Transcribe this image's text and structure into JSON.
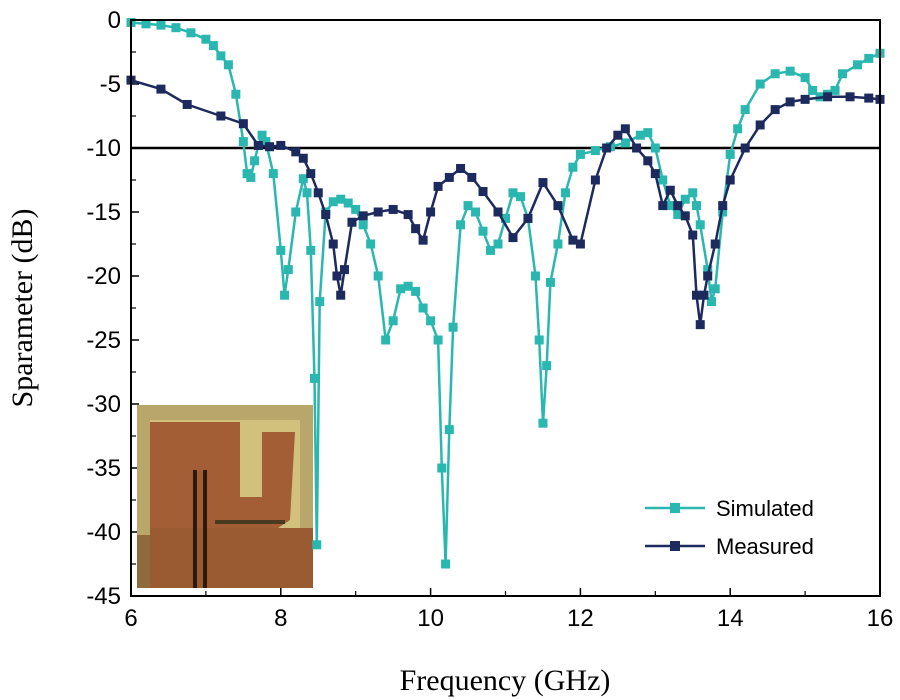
{
  "chart_data": {
    "type": "line",
    "title": "",
    "xlabel": "Frequency (GHz)",
    "ylabel": "Sparameter (dB)",
    "xlim": [
      6,
      16
    ],
    "ylim": [
      -45,
      0
    ],
    "xticks": [
      6,
      8,
      10,
      12,
      14,
      16
    ],
    "yticks": [
      0,
      -5,
      -10,
      -15,
      -20,
      -25,
      -30,
      -35,
      -40,
      -45
    ],
    "reference_line": {
      "y": -10,
      "color": "#000000"
    },
    "legend": {
      "position": "bottom-right"
    },
    "inset": {
      "description": "photo",
      "position": "bottom-left"
    },
    "series": [
      {
        "name": "Simulated",
        "color": "#2ab7b0",
        "marker": "square",
        "points": [
          [
            6.0,
            -0.2
          ],
          [
            6.2,
            -0.3
          ],
          [
            6.4,
            -0.4
          ],
          [
            6.6,
            -0.6
          ],
          [
            6.8,
            -1.0
          ],
          [
            7.0,
            -1.5
          ],
          [
            7.1,
            -2.0
          ],
          [
            7.2,
            -2.8
          ],
          [
            7.3,
            -3.5
          ],
          [
            7.4,
            -5.8
          ],
          [
            7.5,
            -9.5
          ],
          [
            7.55,
            -12.0
          ],
          [
            7.6,
            -12.3
          ],
          [
            7.65,
            -11.0
          ],
          [
            7.7,
            -9.8
          ],
          [
            7.75,
            -9.0
          ],
          [
            7.8,
            -9.5
          ],
          [
            7.9,
            -12.0
          ],
          [
            8.0,
            -18.0
          ],
          [
            8.05,
            -21.5
          ],
          [
            8.1,
            -19.5
          ],
          [
            8.2,
            -15.0
          ],
          [
            8.3,
            -12.4
          ],
          [
            8.35,
            -13.5
          ],
          [
            8.4,
            -18.0
          ],
          [
            8.45,
            -28.0
          ],
          [
            8.48,
            -41.0
          ],
          [
            8.52,
            -22.0
          ],
          [
            8.6,
            -15.0
          ],
          [
            8.7,
            -14.2
          ],
          [
            8.8,
            -14.0
          ],
          [
            8.9,
            -14.3
          ],
          [
            9.0,
            -14.8
          ],
          [
            9.1,
            -16.0
          ],
          [
            9.2,
            -17.5
          ],
          [
            9.3,
            -20.0
          ],
          [
            9.4,
            -25.0
          ],
          [
            9.5,
            -23.5
          ],
          [
            9.6,
            -21.0
          ],
          [
            9.7,
            -20.8
          ],
          [
            9.8,
            -21.2
          ],
          [
            9.9,
            -22.5
          ],
          [
            10.0,
            -23.5
          ],
          [
            10.1,
            -25.0
          ],
          [
            10.15,
            -35.0
          ],
          [
            10.2,
            -42.5
          ],
          [
            10.25,
            -32.0
          ],
          [
            10.3,
            -24.0
          ],
          [
            10.4,
            -16.0
          ],
          [
            10.5,
            -14.5
          ],
          [
            10.6,
            -15.0
          ],
          [
            10.7,
            -16.5
          ],
          [
            10.8,
            -18.0
          ],
          [
            10.9,
            -17.5
          ],
          [
            11.0,
            -15.5
          ],
          [
            11.1,
            -13.5
          ],
          [
            11.2,
            -13.8
          ],
          [
            11.3,
            -15.5
          ],
          [
            11.4,
            -20.0
          ],
          [
            11.45,
            -25.0
          ],
          [
            11.5,
            -31.5
          ],
          [
            11.55,
            -27.0
          ],
          [
            11.6,
            -20.5
          ],
          [
            11.7,
            -17.5
          ],
          [
            11.8,
            -13.5
          ],
          [
            11.9,
            -11.5
          ],
          [
            12.0,
            -10.5
          ],
          [
            12.2,
            -10.2
          ],
          [
            12.4,
            -9.9
          ],
          [
            12.6,
            -9.6
          ],
          [
            12.8,
            -9.0
          ],
          [
            12.9,
            -8.8
          ],
          [
            13.0,
            -10.0
          ],
          [
            13.1,
            -12.5
          ],
          [
            13.2,
            -14.5
          ],
          [
            13.3,
            -15.2
          ],
          [
            13.4,
            -14.0
          ],
          [
            13.5,
            -13.5
          ],
          [
            13.55,
            -14.5
          ],
          [
            13.6,
            -16.0
          ],
          [
            13.7,
            -19.5
          ],
          [
            13.75,
            -22.0
          ],
          [
            13.8,
            -21.0
          ],
          [
            13.9,
            -15.0
          ],
          [
            14.0,
            -10.5
          ],
          [
            14.1,
            -8.5
          ],
          [
            14.2,
            -7.0
          ],
          [
            14.4,
            -5.0
          ],
          [
            14.6,
            -4.2
          ],
          [
            14.8,
            -4.0
          ],
          [
            15.0,
            -4.5
          ],
          [
            15.1,
            -5.5
          ],
          [
            15.2,
            -6.0
          ],
          [
            15.3,
            -5.8
          ],
          [
            15.4,
            -5.5
          ],
          [
            15.5,
            -4.2
          ],
          [
            15.7,
            -3.5
          ],
          [
            15.85,
            -3.0
          ],
          [
            16.0,
            -2.6
          ]
        ]
      },
      {
        "name": "Measured",
        "color": "#1c2a5e",
        "marker": "square",
        "points": [
          [
            6.0,
            -4.7
          ],
          [
            6.4,
            -5.4
          ],
          [
            6.75,
            -6.6
          ],
          [
            7.2,
            -7.5
          ],
          [
            7.5,
            -8.1
          ],
          [
            7.7,
            -9.8
          ],
          [
            7.85,
            -9.9
          ],
          [
            8.0,
            -9.8
          ],
          [
            8.2,
            -10.3
          ],
          [
            8.3,
            -10.8
          ],
          [
            8.4,
            -12.0
          ],
          [
            8.5,
            -13.5
          ],
          [
            8.6,
            -15.2
          ],
          [
            8.7,
            -17.5
          ],
          [
            8.75,
            -20.0
          ],
          [
            8.8,
            -21.5
          ],
          [
            8.85,
            -19.5
          ],
          [
            8.95,
            -15.8
          ],
          [
            9.1,
            -15.3
          ],
          [
            9.3,
            -15.0
          ],
          [
            9.5,
            -14.8
          ],
          [
            9.7,
            -15.2
          ],
          [
            9.8,
            -16.3
          ],
          [
            9.9,
            -17.2
          ],
          [
            10.0,
            -15.0
          ],
          [
            10.1,
            -13.0
          ],
          [
            10.25,
            -12.3
          ],
          [
            10.4,
            -11.6
          ],
          [
            10.55,
            -12.3
          ],
          [
            10.7,
            -13.4
          ],
          [
            10.9,
            -15.0
          ],
          [
            11.1,
            -17.0
          ],
          [
            11.3,
            -15.5
          ],
          [
            11.5,
            -12.7
          ],
          [
            11.7,
            -14.5
          ],
          [
            11.9,
            -17.2
          ],
          [
            12.0,
            -17.5
          ],
          [
            12.2,
            -12.5
          ],
          [
            12.35,
            -10.0
          ],
          [
            12.5,
            -9.0
          ],
          [
            12.6,
            -8.5
          ],
          [
            12.75,
            -10.0
          ],
          [
            12.9,
            -11.0
          ],
          [
            13.0,
            -12.0
          ],
          [
            13.1,
            -14.5
          ],
          [
            13.2,
            -13.3
          ],
          [
            13.3,
            -14.5
          ],
          [
            13.4,
            -15.3
          ],
          [
            13.5,
            -16.8
          ],
          [
            13.55,
            -21.5
          ],
          [
            13.6,
            -23.8
          ],
          [
            13.65,
            -21.5
          ],
          [
            13.7,
            -20.0
          ],
          [
            13.8,
            -17.5
          ],
          [
            13.9,
            -14.5
          ],
          [
            14.0,
            -12.5
          ],
          [
            14.2,
            -10.0
          ],
          [
            14.4,
            -8.2
          ],
          [
            14.6,
            -7.0
          ],
          [
            14.8,
            -6.4
          ],
          [
            15.0,
            -6.2
          ],
          [
            15.3,
            -6.0
          ],
          [
            15.6,
            -6.0
          ],
          [
            15.85,
            -6.1
          ],
          [
            16.0,
            -6.2
          ]
        ]
      }
    ]
  }
}
